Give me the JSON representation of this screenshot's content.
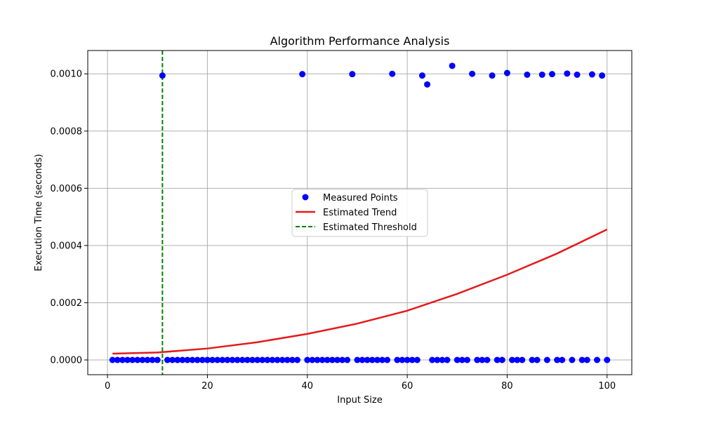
{
  "chart_data": {
    "type": "scatter",
    "title": "Algorithm Performance Analysis",
    "xlabel": "Input Size",
    "ylabel": "Execution Time (seconds)",
    "xlim": [
      -3.95,
      104.95
    ],
    "ylim": [
      -5.15e-05,
      0.0010815
    ],
    "x_ticks": [
      0,
      20,
      40,
      60,
      80,
      100
    ],
    "y_ticks": [
      0,
      0.0002,
      0.0004,
      0.0006,
      0.0008,
      0.001
    ],
    "x_tick_labels": [
      "0",
      "20",
      "40",
      "60",
      "80",
      "100"
    ],
    "y_tick_labels": [
      "0.0000",
      "0.0002",
      "0.0004",
      "0.0006",
      "0.0008",
      "0.0010"
    ],
    "grid": true,
    "legend_position": "center",
    "series": [
      {
        "name": "Measured Points",
        "kind": "scatter",
        "color": "#0000ff",
        "points": [
          [
            1,
            0
          ],
          [
            2,
            0
          ],
          [
            3,
            0
          ],
          [
            4,
            0
          ],
          [
            5,
            0
          ],
          [
            6,
            0
          ],
          [
            7,
            0
          ],
          [
            8,
            0
          ],
          [
            9,
            0
          ],
          [
            10,
            0
          ],
          [
            11,
            0.000994
          ],
          [
            12,
            0
          ],
          [
            13,
            0
          ],
          [
            14,
            0
          ],
          [
            15,
            0
          ],
          [
            16,
            0
          ],
          [
            17,
            0
          ],
          [
            18,
            0
          ],
          [
            19,
            0
          ],
          [
            20,
            0
          ],
          [
            21,
            0
          ],
          [
            22,
            0
          ],
          [
            23,
            0
          ],
          [
            24,
            0
          ],
          [
            25,
            0
          ],
          [
            26,
            0
          ],
          [
            27,
            0
          ],
          [
            28,
            0
          ],
          [
            29,
            0
          ],
          [
            30,
            0
          ],
          [
            31,
            0
          ],
          [
            32,
            0
          ],
          [
            33,
            0
          ],
          [
            34,
            0
          ],
          [
            35,
            0
          ],
          [
            36,
            0
          ],
          [
            37,
            0
          ],
          [
            38,
            0
          ],
          [
            39,
            0.000999
          ],
          [
            40,
            0
          ],
          [
            41,
            0
          ],
          [
            42,
            0
          ],
          [
            43,
            0
          ],
          [
            44,
            0
          ],
          [
            45,
            0
          ],
          [
            46,
            0
          ],
          [
            47,
            0
          ],
          [
            48,
            0
          ],
          [
            49,
            0.000999
          ],
          [
            50,
            0
          ],
          [
            51,
            0
          ],
          [
            52,
            0
          ],
          [
            53,
            0
          ],
          [
            54,
            0
          ],
          [
            55,
            0
          ],
          [
            56,
            0
          ],
          [
            57,
            0.001
          ],
          [
            58,
            0
          ],
          [
            59,
            0
          ],
          [
            60,
            0
          ],
          [
            61,
            0
          ],
          [
            62,
            0
          ],
          [
            63,
            0.000994
          ],
          [
            64,
            0.000963
          ],
          [
            65,
            0
          ],
          [
            66,
            0
          ],
          [
            67,
            0
          ],
          [
            68,
            0
          ],
          [
            69,
            0.001028
          ],
          [
            70,
            0
          ],
          [
            71,
            0
          ],
          [
            72,
            0
          ],
          [
            73,
            0.001
          ],
          [
            74,
            0
          ],
          [
            75,
            0
          ],
          [
            76,
            0
          ],
          [
            77,
            0.000994
          ],
          [
            78,
            0
          ],
          [
            79,
            0
          ],
          [
            80,
            0.001003
          ],
          [
            81,
            0
          ],
          [
            82,
            0
          ],
          [
            83,
            0
          ],
          [
            84,
            0.000997
          ],
          [
            85,
            0
          ],
          [
            86,
            0
          ],
          [
            87,
            0.000997
          ],
          [
            88,
            0
          ],
          [
            89,
            0.000999
          ],
          [
            90,
            0
          ],
          [
            91,
            0
          ],
          [
            92,
            0.001001
          ],
          [
            93,
            0
          ],
          [
            94,
            0.000997
          ],
          [
            95,
            0
          ],
          [
            96,
            0
          ],
          [
            97,
            0.000998
          ],
          [
            98,
            0
          ],
          [
            99,
            0.000994
          ],
          [
            100,
            0
          ]
        ]
      },
      {
        "name": "Estimated Trend",
        "kind": "line",
        "color": "#e41a1c",
        "x": [
          1,
          10,
          20,
          30,
          40,
          50,
          60,
          70,
          80,
          90,
          100
        ],
        "y": [
          2.2e-05,
          2.6e-05,
          4e-05,
          6.2e-05,
          9.1e-05,
          0.000127,
          0.000172,
          0.000231,
          0.000298,
          0.000372,
          0.000456
        ]
      },
      {
        "name": "Estimated Threshold",
        "kind": "vline",
        "color": "#008000",
        "x": 11
      }
    ]
  }
}
